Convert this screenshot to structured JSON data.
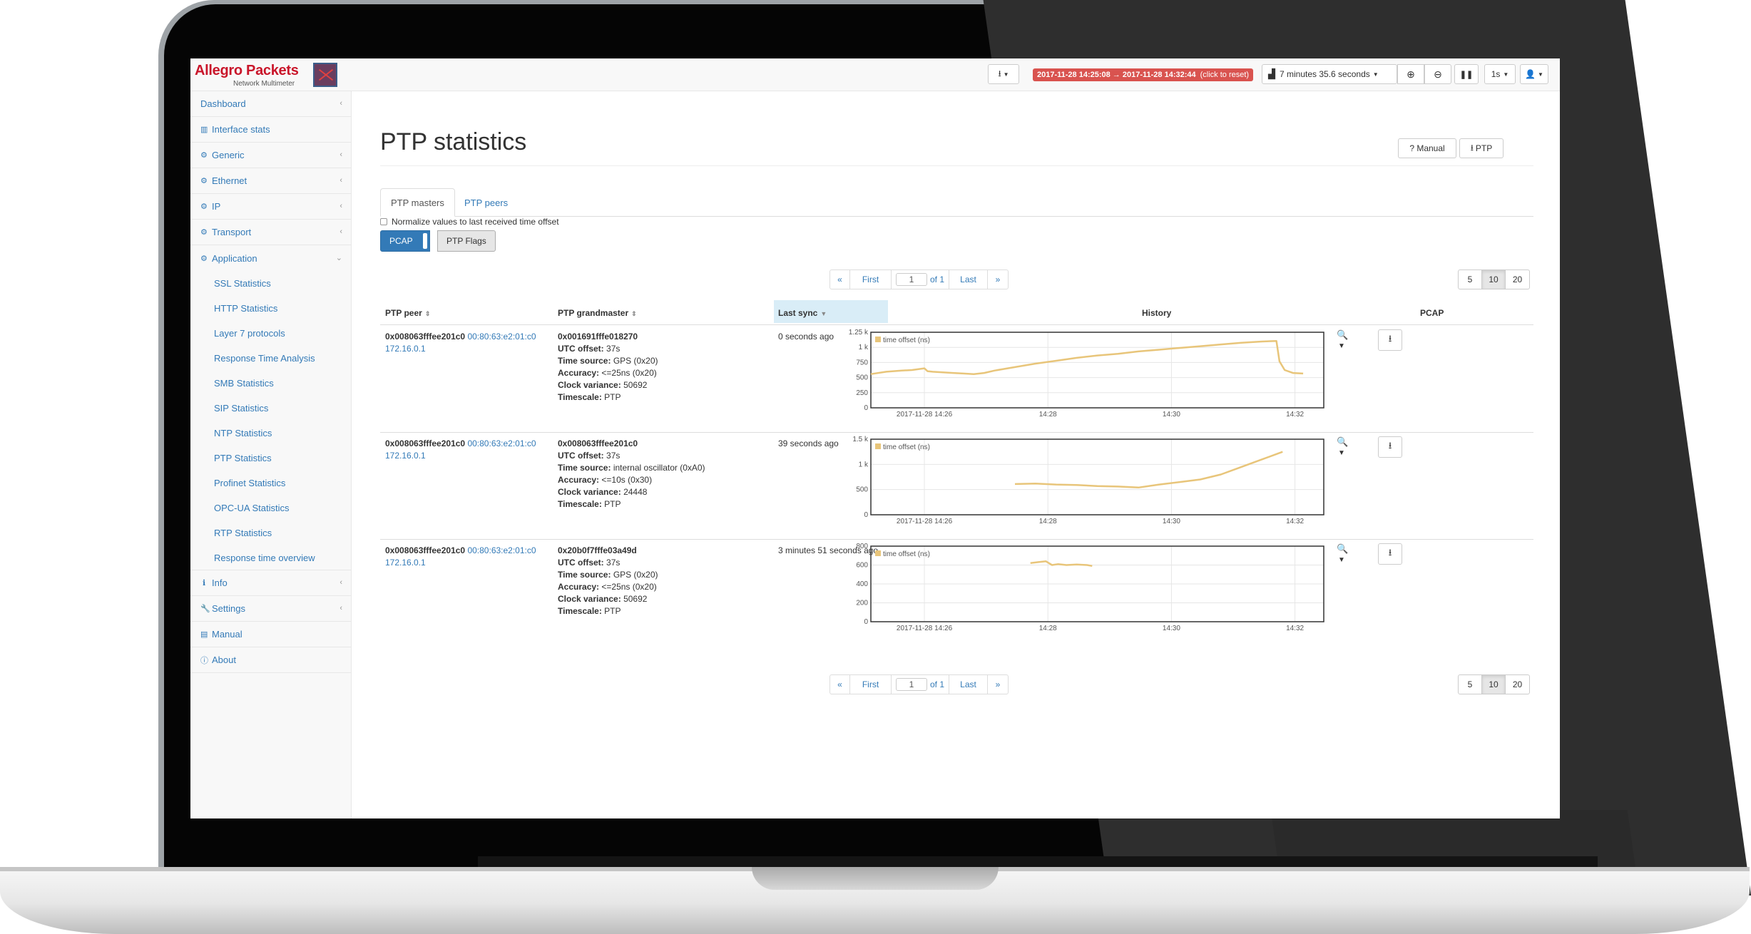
{
  "brand": {
    "name": "Allegro Packets",
    "subtitle": "Network Multimeter"
  },
  "topbar": {
    "time_range": "2017-11-28 14:25:08 → 2017-11-28 14:32:44",
    "time_range_hint": "(click to reset)",
    "duration": "7 minutes 35.6 seconds",
    "interval": "1s"
  },
  "sidebar": {
    "items": [
      {
        "label": "Dashboard",
        "icon": "none",
        "chevron": true
      },
      {
        "label": "Interface stats",
        "icon": "bar-chart-icon",
        "chevron": false
      },
      {
        "label": "Generic",
        "icon": "gear-icon",
        "chevron": true
      },
      {
        "label": "Ethernet",
        "icon": "gear-icon",
        "chevron": true
      },
      {
        "label": "IP",
        "icon": "gear-icon",
        "chevron": true
      },
      {
        "label": "Transport",
        "icon": "gear-icon",
        "chevron": true
      },
      {
        "label": "Application",
        "icon": "gear-icon",
        "chevron": true
      }
    ],
    "sub_items": [
      "SSL Statistics",
      "HTTP Statistics",
      "Layer 7 protocols",
      "Response Time Analysis",
      "SMB Statistics",
      "SIP Statistics",
      "NTP Statistics",
      "PTP Statistics",
      "Profinet Statistics",
      "OPC-UA Statistics",
      "RTP Statistics",
      "Response time overview"
    ],
    "bottom_items": [
      {
        "label": "Info",
        "icon": "info-icon",
        "chevron": true
      },
      {
        "label": "Settings",
        "icon": "wrench-icon",
        "chevron": true
      },
      {
        "label": "Manual",
        "icon": "book-icon",
        "chevron": false
      },
      {
        "label": "About",
        "icon": "info-circle-icon",
        "chevron": false
      }
    ]
  },
  "page": {
    "title": "PTP statistics",
    "manual_label": "? Manual",
    "ptp_download_label": "PTP",
    "tabs": [
      "PTP masters",
      "PTP peers"
    ],
    "normalize_label": "Normalize values to last received time offset",
    "pcap_toggle": "PCAP",
    "ptp_flags": "PTP Flags"
  },
  "pager": {
    "prev": "«",
    "first": "First",
    "page": "1",
    "of": "of 1",
    "last": "Last",
    "next": "»",
    "sizes": [
      "5",
      "10",
      "20"
    ],
    "selected_size": "10"
  },
  "table": {
    "headers": {
      "peer": "PTP peer",
      "grandmaster": "PTP grandmaster",
      "last_sync": "Last sync",
      "history": "History",
      "pcap": "PCAP"
    },
    "rows": [
      {
        "peer_id": "0x008063fffee201c0",
        "peer_mac": "00:80:63:e2:01:c0",
        "peer_ip": "172.16.0.1",
        "gm_id": "0x001691fffe018270",
        "utc_offset_label": "UTC offset:",
        "utc_offset": "37s",
        "time_source_label": "Time source:",
        "time_source": "GPS (0x20)",
        "accuracy_label": "Accuracy:",
        "accuracy": "<=25ns (0x20)",
        "clock_variance_label": "Clock variance:",
        "clock_variance": "50692",
        "timescale_label": "Timescale:",
        "timescale": "PTP",
        "last_sync": "0 seconds ago"
      },
      {
        "peer_id": "0x008063fffee201c0",
        "peer_mac": "00:80:63:e2:01:c0",
        "peer_ip": "172.16.0.1",
        "gm_id": "0x008063fffee201c0",
        "utc_offset_label": "UTC offset:",
        "utc_offset": "37s",
        "time_source_label": "Time source:",
        "time_source": "internal oscillator (0xA0)",
        "accuracy_label": "Accuracy:",
        "accuracy": "<=10s (0x30)",
        "clock_variance_label": "Clock variance:",
        "clock_variance": "24448",
        "timescale_label": "Timescale:",
        "timescale": "PTP",
        "last_sync": "39 seconds ago"
      },
      {
        "peer_id": "0x008063fffee201c0",
        "peer_mac": "00:80:63:e2:01:c0",
        "peer_ip": "172.16.0.1",
        "gm_id": "0x20b0f7fffe03a49d",
        "utc_offset_label": "UTC offset:",
        "utc_offset": "37s",
        "time_source_label": "Time source:",
        "time_source": "GPS (0x20)",
        "accuracy_label": "Accuracy:",
        "accuracy": "<=25ns (0x20)",
        "clock_variance_label": "Clock variance:",
        "clock_variance": "50692",
        "timescale_label": "Timescale:",
        "timescale": "PTP",
        "last_sync": "3 minutes 51 seconds ago"
      }
    ]
  },
  "chart_data": [
    {
      "type": "line",
      "series": [
        {
          "name": "time offset (ns)",
          "color": "#e8c57a",
          "x": [
            0,
            15,
            30,
            40,
            52,
            55,
            60,
            70,
            80,
            90,
            100,
            110,
            120,
            140,
            160,
            180,
            200,
            220,
            240,
            260,
            280,
            300,
            320,
            340,
            360,
            380,
            394,
            397,
            402,
            410,
            420
          ],
          "y": [
            580,
            620,
            640,
            650,
            680,
            630,
            620,
            610,
            600,
            590,
            580,
            600,
            640,
            700,
            760,
            810,
            860,
            900,
            930,
            970,
            1000,
            1030,
            1060,
            1090,
            1120,
            1140,
            1150,
            800,
            650,
            600,
            590
          ]
        }
      ],
      "yticks": [
        "0",
        "250",
        "500",
        "750",
        "1 k",
        "1.25 k"
      ],
      "ylim": [
        0,
        1300
      ],
      "xticks": [
        "2017-11-28 14:26",
        "14:28",
        "14:30",
        "14:32"
      ],
      "xtick_pos": [
        52,
        172,
        292,
        412
      ],
      "xlim": [
        0,
        440
      ]
    },
    {
      "type": "line",
      "series": [
        {
          "name": "time offset (ns)",
          "color": "#e8c57a",
          "x": [
            140,
            160,
            180,
            200,
            220,
            240,
            260,
            280,
            300,
            320,
            340,
            360,
            380,
            400
          ],
          "y": [
            610,
            620,
            600,
            590,
            570,
            560,
            540,
            600,
            650,
            700,
            800,
            950,
            1100,
            1250
          ]
        }
      ],
      "yticks": [
        "0",
        "500",
        "1 k",
        "1.5 k"
      ],
      "ylim": [
        0,
        1500
      ],
      "xticks": [
        "2017-11-28 14:26",
        "14:28",
        "14:30",
        "14:32"
      ],
      "xtick_pos": [
        52,
        172,
        292,
        412
      ],
      "xlim": [
        0,
        440
      ]
    },
    {
      "type": "line",
      "series": [
        {
          "name": "time offset (ns)",
          "color": "#e8c57a",
          "x": [
            155,
            162,
            170,
            176,
            182,
            190,
            200,
            210,
            215
          ],
          "y": [
            620,
            630,
            640,
            600,
            610,
            600,
            605,
            600,
            590
          ]
        }
      ],
      "yticks": [
        "0",
        "200",
        "400",
        "600",
        "800"
      ],
      "ylim": [
        0,
        800
      ],
      "xticks": [
        "2017-11-28 14:26",
        "14:28",
        "14:30",
        "14:32"
      ],
      "xtick_pos": [
        52,
        172,
        292,
        412
      ],
      "xlim": [
        0,
        440
      ]
    }
  ]
}
